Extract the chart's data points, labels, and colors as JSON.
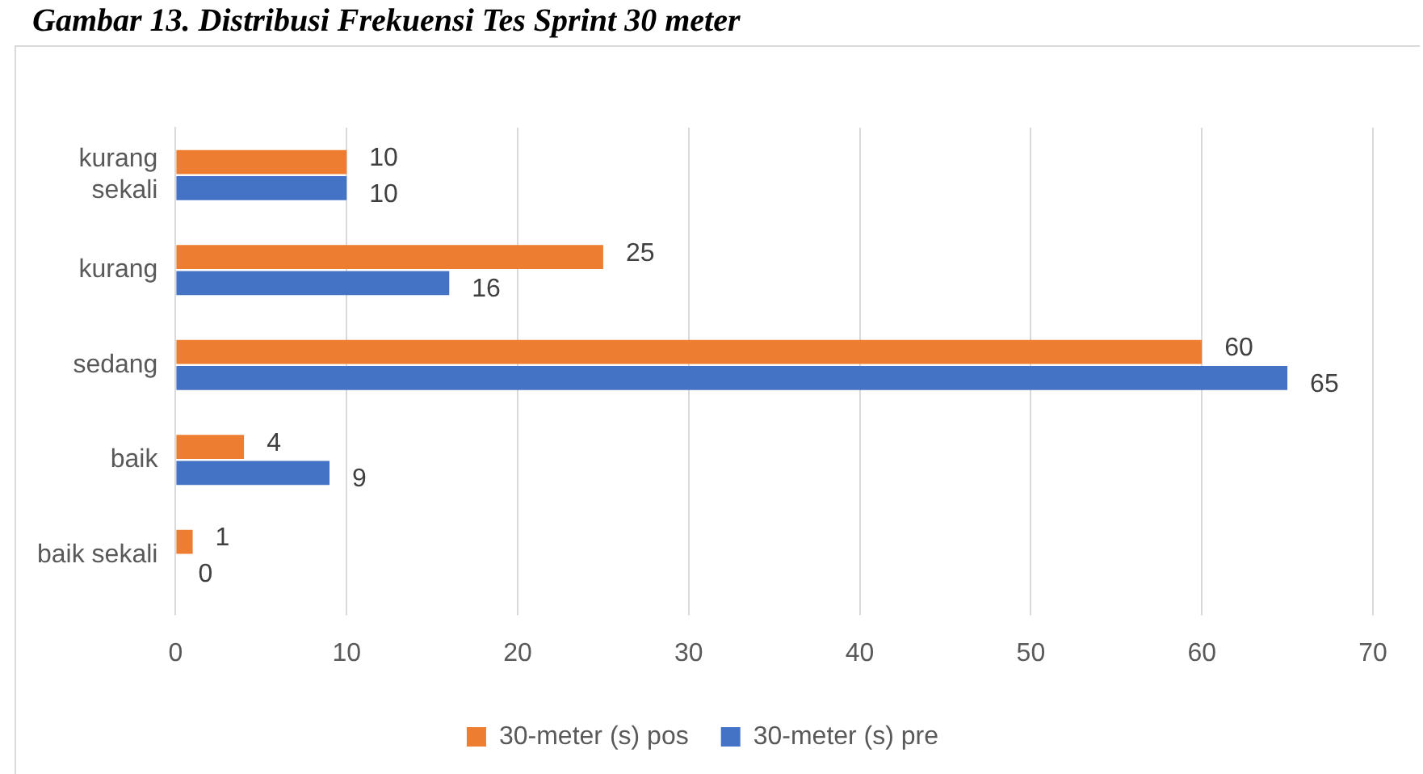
{
  "chart_data": {
    "type": "bar",
    "orientation": "horizontal",
    "title": "Gambar 13. Distribusi Frekuensi Tes Sprint 30 meter",
    "categories": [
      "kurang sekali",
      "kurang",
      "sedang",
      "baik",
      "baik sekali"
    ],
    "series": [
      {
        "name": "30-meter (s) pos",
        "color": "#ed7d31",
        "values": [
          10,
          25,
          60,
          4,
          1
        ]
      },
      {
        "name": "30-meter (s) pre",
        "color": "#4472c4",
        "values": [
          10,
          16,
          65,
          9,
          0
        ]
      }
    ],
    "xlim": [
      0,
      70
    ],
    "xticks": [
      0,
      10,
      20,
      30,
      40,
      50,
      60,
      70
    ],
    "grid": "x",
    "legend": "bottom",
    "data_labels": true
  }
}
